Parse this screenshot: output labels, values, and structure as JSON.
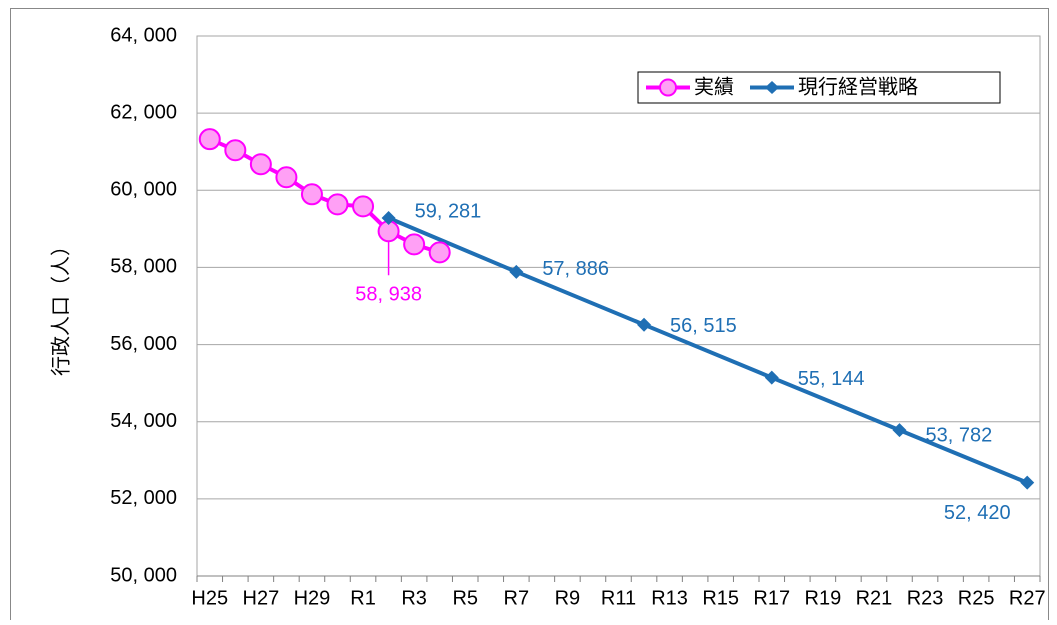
{
  "chart_data": {
    "type": "line",
    "y_axis_label": "行政人口（人）",
    "categories": [
      "H25",
      null,
      "H27",
      null,
      "H29",
      null,
      "R1",
      null,
      "R3",
      null,
      "R5",
      null,
      "R7",
      null,
      "R9",
      null,
      "R11",
      null,
      "R13",
      null,
      "R15",
      null,
      "R17",
      null,
      "R19",
      null,
      "R21",
      null,
      "R23",
      null,
      "R25",
      null,
      "R27"
    ],
    "series": [
      {
        "name": "実績",
        "color": "#ff00ff",
        "marker": "circle",
        "marker_fill": "#ffa0f5",
        "values": [
          61325,
          61039,
          60675,
          60338,
          59896,
          59636,
          59584,
          58938,
          58597,
          58390,
          null,
          null,
          null,
          null,
          null,
          null,
          null,
          null,
          null,
          null,
          null,
          null,
          null,
          null,
          null,
          null,
          null,
          null,
          null,
          null,
          null,
          null,
          null
        ],
        "value_labels": [
          null,
          null,
          null,
          null,
          null,
          null,
          null,
          "58, 938",
          null,
          null,
          null,
          null,
          null,
          null,
          null,
          null,
          null,
          null,
          null,
          null,
          null,
          null,
          null,
          null,
          null,
          null,
          null,
          null,
          null,
          null,
          null,
          null,
          null
        ]
      },
      {
        "name": "現行経営戦略",
        "color": "#1f6fb4",
        "marker": "diamond",
        "connect_gaps": true,
        "values": [
          null,
          null,
          null,
          null,
          null,
          null,
          null,
          59281,
          null,
          null,
          null,
          null,
          57886,
          null,
          null,
          null,
          null,
          56515,
          null,
          null,
          null,
          null,
          55144,
          null,
          null,
          null,
          null,
          53782,
          null,
          null,
          null,
          null,
          52420
        ],
        "value_labels": [
          null,
          null,
          null,
          null,
          null,
          null,
          null,
          "59, 281",
          null,
          null,
          null,
          null,
          "57, 886",
          null,
          null,
          null,
          null,
          "56, 515",
          null,
          null,
          null,
          null,
          "55, 144",
          null,
          null,
          null,
          null,
          "53, 782",
          null,
          null,
          null,
          null,
          "52, 420"
        ]
      }
    ],
    "ylim": [
      50000,
      64000
    ],
    "yticks": [
      {
        "value": 50000,
        "label": "50, 000"
      },
      {
        "value": 52000,
        "label": "52, 000"
      },
      {
        "value": 54000,
        "label": "54, 000"
      },
      {
        "value": 56000,
        "label": "56, 000"
      },
      {
        "value": 58000,
        "label": "58, 000"
      },
      {
        "value": 60000,
        "label": "60, 000"
      },
      {
        "value": 62000,
        "label": "62, 000"
      },
      {
        "value": 64000,
        "label": "64, 000"
      }
    ],
    "grid": true,
    "legend": "top-right"
  }
}
